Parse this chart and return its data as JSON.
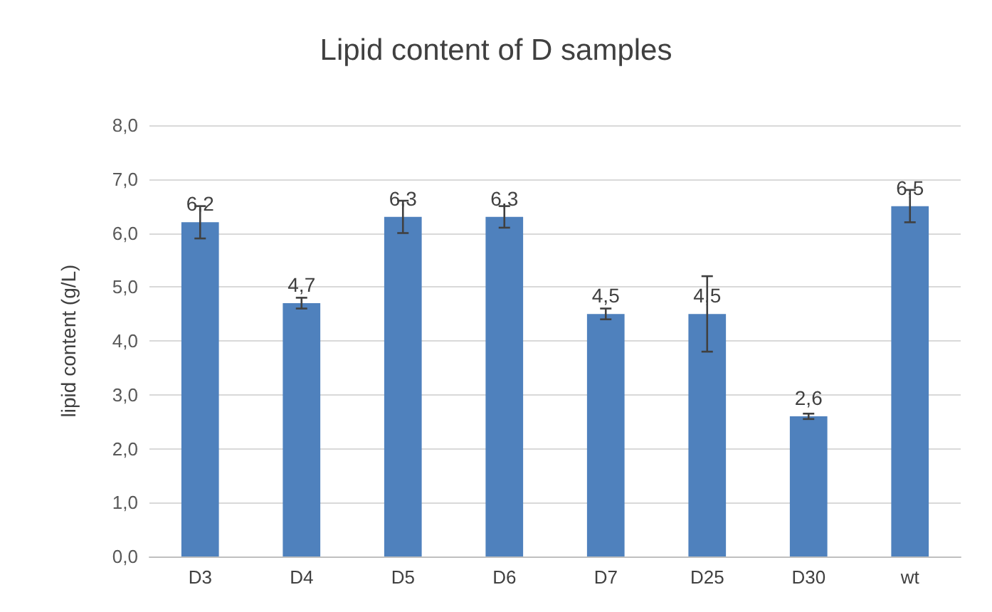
{
  "chart_data": {
    "type": "bar",
    "title": "Lipid content of D samples",
    "ylabel": "lipid content (g/L)",
    "categories": [
      "D3",
      "D4",
      "D5",
      "D6",
      "D7",
      "D25",
      "D30",
      "wt"
    ],
    "values": [
      6.2,
      4.7,
      6.3,
      6.3,
      4.5,
      4.5,
      2.6,
      6.5
    ],
    "value_labels": [
      "6,2",
      "4,7",
      "6,3",
      "6,3",
      "4,5",
      "4,5",
      "2,6",
      "6,5"
    ],
    "errors": [
      0.3,
      0.1,
      0.3,
      0.2,
      0.1,
      0.7,
      0.05,
      0.3
    ],
    "color": "#4f81bd",
    "ylim": [
      0,
      8
    ],
    "yticks": [
      {
        "value": 0,
        "label": "0,0"
      },
      {
        "value": 1,
        "label": "1,0"
      },
      {
        "value": 2,
        "label": "2,0"
      },
      {
        "value": 3,
        "label": "3,0"
      },
      {
        "value": 4,
        "label": "4,0"
      },
      {
        "value": 5,
        "label": "5,0"
      },
      {
        "value": 6,
        "label": "6,0"
      },
      {
        "value": 7,
        "label": "7,0"
      },
      {
        "value": 8,
        "label": "8,0"
      }
    ],
    "grid": "y"
  }
}
